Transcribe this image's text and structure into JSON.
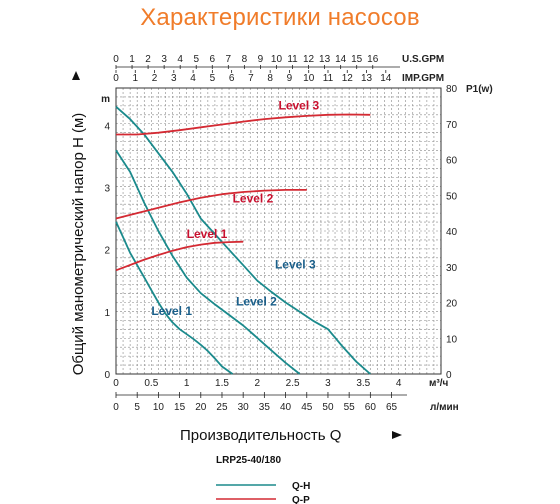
{
  "page": {
    "title": "Характеристики насосов"
  },
  "chart_data": {
    "type": "line",
    "model": "LRP25-40/180",
    "ylabel": "Общий манометрический напор H (м)",
    "xlabel": "Производительность Q",
    "y_left_unit": "m",
    "y_right_unit": "P1(w)",
    "ylim_left": [
      0,
      4.6
    ],
    "ylim_right": [
      0,
      80
    ],
    "xlim_m3h": [
      0,
      4.6
    ],
    "axes": {
      "us_gpm": {
        "unit": "U.S.GPM",
        "ticks": [
          "0",
          "1",
          "2",
          "3",
          "4",
          "5",
          "6",
          "7",
          "8",
          "9",
          "10",
          "11",
          "12",
          "13",
          "14",
          "15",
          "16"
        ]
      },
      "imp_gpm": {
        "unit": "IMP.GPM",
        "ticks": [
          "0",
          "1",
          "2",
          "3",
          "4",
          "5",
          "6",
          "7",
          "8",
          "9",
          "10",
          "11",
          "12",
          "13",
          "14"
        ]
      },
      "m3h": {
        "unit": "м³/ч",
        "ticks": [
          "0",
          "0.5",
          "1",
          "1.5",
          "2",
          "2.5",
          "3",
          "3.5",
          "4"
        ]
      },
      "lmin": {
        "unit": "л/мин",
        "ticks": [
          "0",
          "5",
          "10",
          "15",
          "20",
          "25",
          "30",
          "35",
          "40",
          "45",
          "50",
          "55",
          "60",
          "65"
        ]
      },
      "head_left_ticks": [
        "0",
        "1",
        "2",
        "3",
        "4"
      ],
      "power_right_ticks": [
        "0",
        "10",
        "20",
        "30",
        "40",
        "50",
        "60",
        "70",
        "80"
      ]
    },
    "series": [
      {
        "name": "Level 1",
        "kind": "Q-H",
        "color": "#1b8a8c",
        "x": [
          0,
          0.1,
          0.2,
          0.3,
          0.4,
          0.5,
          0.6,
          0.7,
          0.8,
          0.9,
          1.0,
          1.1,
          1.2,
          1.3,
          1.4,
          1.5,
          1.65
        ],
        "y": [
          2.45,
          2.2,
          1.95,
          1.75,
          1.55,
          1.35,
          1.15,
          0.97,
          0.83,
          0.72,
          0.64,
          0.56,
          0.47,
          0.37,
          0.25,
          0.12,
          0
        ]
      },
      {
        "name": "Level 2",
        "kind": "Q-H",
        "color": "#1b8a8c",
        "x": [
          0,
          0.2,
          0.4,
          0.6,
          0.8,
          1.0,
          1.2,
          1.4,
          1.6,
          1.8,
          2.0,
          2.2,
          2.4,
          2.6
        ],
        "y": [
          3.6,
          3.25,
          2.75,
          2.3,
          1.9,
          1.55,
          1.3,
          1.12,
          0.95,
          0.78,
          0.58,
          0.38,
          0.18,
          0
        ]
      },
      {
        "name": "Level 3",
        "kind": "Q-H",
        "color": "#1b8a8c",
        "x": [
          0,
          0.2,
          0.4,
          0.6,
          0.8,
          1.0,
          1.2,
          1.4,
          1.6,
          1.8,
          2.0,
          2.2,
          2.4,
          2.6,
          2.8,
          3.0,
          3.2,
          3.4,
          3.6
        ],
        "y": [
          4.3,
          4.1,
          3.85,
          3.55,
          3.25,
          2.9,
          2.5,
          2.25,
          2.0,
          1.75,
          1.5,
          1.32,
          1.15,
          1.0,
          0.85,
          0.72,
          0.45,
          0.2,
          0
        ]
      },
      {
        "name": "Level 1",
        "kind": "Q-P",
        "color": "#d42a33",
        "x": [
          0,
          0.2,
          0.4,
          0.6,
          0.8,
          1.0,
          1.2,
          1.4,
          1.6,
          1.8
        ],
        "y": [
          29,
          30.5,
          32,
          33.3,
          34.5,
          35.5,
          36.2,
          36.7,
          36.9,
          37
        ]
      },
      {
        "name": "Level 2",
        "kind": "Q-P",
        "color": "#d42a33",
        "x": [
          0,
          0.3,
          0.6,
          0.9,
          1.2,
          1.5,
          1.8,
          2.1,
          2.4,
          2.7
        ],
        "y": [
          43.5,
          45,
          46.5,
          48,
          49.3,
          50.3,
          50.9,
          51.3,
          51.5,
          51.5
        ]
      },
      {
        "name": "Level 3",
        "kind": "Q-P",
        "color": "#d42a33",
        "x": [
          0,
          0.3,
          0.6,
          0.9,
          1.2,
          1.5,
          1.8,
          2.1,
          2.4,
          2.7,
          3.0,
          3.3,
          3.6
        ],
        "y": [
          67,
          67,
          67.5,
          68.2,
          69,
          69.8,
          70.6,
          71.3,
          71.8,
          72.2,
          72.5,
          72.6,
          72.5
        ]
      }
    ],
    "series_labels": {
      "qh": [
        "Level 1",
        "Level 2",
        "Level 3"
      ],
      "qp": [
        "Level 1",
        "Level 2",
        "Level 3"
      ]
    },
    "legend": {
      "placement": "bottom-right",
      "items": [
        {
          "label": "Q-H",
          "color": "#1b8a8c"
        },
        {
          "label": "Q-P",
          "color": "#d42a33"
        }
      ]
    },
    "grid": true
  }
}
